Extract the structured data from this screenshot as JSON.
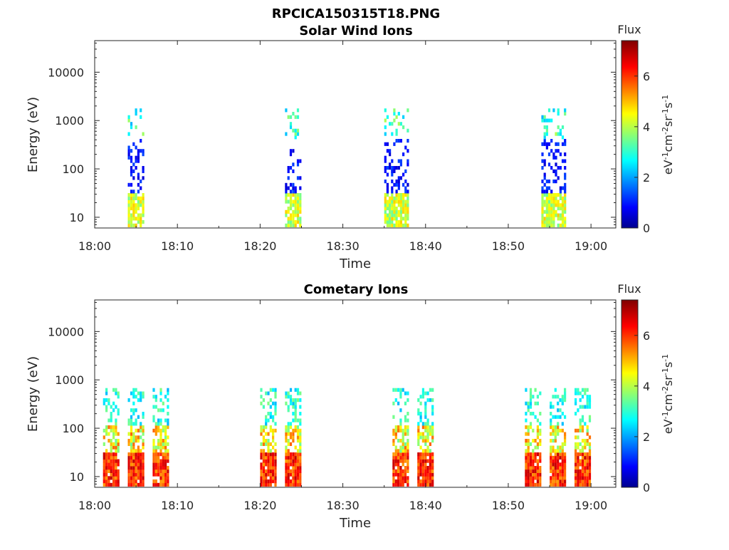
{
  "figure": {
    "main_title": "RPCICA150315T18.PNG"
  },
  "chart_data": [
    {
      "type": "heatmap",
      "title": "Solar Wind Ions",
      "xlabel": "Time",
      "ylabel": "Energy (eV)",
      "yscale": "log",
      "xlim": [
        "18:00",
        "19:03"
      ],
      "ylim": [
        6,
        45000
      ],
      "x_ticks": [
        "18:00",
        "18:10",
        "18:20",
        "18:30",
        "18:40",
        "18:50",
        "19:00"
      ],
      "y_ticks": [
        "10",
        "100",
        "1000",
        "10000"
      ],
      "colorbar": {
        "title": "Flux",
        "label": "eV-1cm-2sr-1s-1",
        "ticks": [
          "0",
          "2",
          "4",
          "6"
        ],
        "range": [
          0,
          7.4
        ],
        "colormap": "jet"
      },
      "grid": false,
      "bursts": [
        {
          "start_time": "18:04",
          "end_time": "18:06"
        },
        {
          "start_time": "18:23",
          "end_time": "18:25"
        },
        {
          "start_time": "18:35",
          "end_time": "18:38"
        },
        {
          "start_time": "18:54",
          "end_time": "18:57"
        }
      ]
    },
    {
      "type": "heatmap",
      "title": "Cometary Ions",
      "xlabel": "Time",
      "ylabel": "Energy (eV)",
      "yscale": "log",
      "xlim": [
        "18:00",
        "19:03"
      ],
      "ylim": [
        6,
        45000
      ],
      "x_ticks": [
        "18:00",
        "18:10",
        "18:20",
        "18:30",
        "18:40",
        "18:50",
        "19:00"
      ],
      "y_ticks": [
        "10",
        "100",
        "1000",
        "10000"
      ],
      "colorbar": {
        "title": "Flux",
        "label": "eV-1cm-2sr-1s-1",
        "ticks": [
          "0",
          "2",
          "4",
          "6"
        ],
        "range": [
          0,
          7.4
        ],
        "colormap": "jet"
      },
      "grid": false,
      "bursts": [
        {
          "start_time": "18:01",
          "end_time": "18:03"
        },
        {
          "start_time": "18:04",
          "end_time": "18:06"
        },
        {
          "start_time": "18:07",
          "end_time": "18:09"
        },
        {
          "start_time": "18:20",
          "end_time": "18:22"
        },
        {
          "start_time": "18:23",
          "end_time": "18:25"
        },
        {
          "start_time": "18:36",
          "end_time": "18:38"
        },
        {
          "start_time": "18:39",
          "end_time": "18:41"
        },
        {
          "start_time": "18:52",
          "end_time": "18:54"
        },
        {
          "start_time": "18:55",
          "end_time": "18:57"
        },
        {
          "start_time": "18:58",
          "end_time": "19:00"
        }
      ]
    }
  ]
}
